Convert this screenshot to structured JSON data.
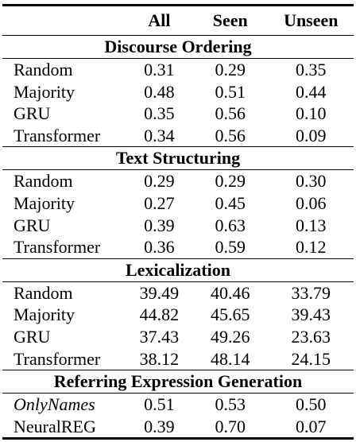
{
  "header": {
    "col_all": "All",
    "col_seen": "Seen",
    "col_unseen": "Unseen"
  },
  "sections": [
    {
      "title": "Discourse Ordering",
      "rows": [
        {
          "name": "Random",
          "all": "0.31",
          "seen": "0.29",
          "unseen": "0.35"
        },
        {
          "name": "Majority",
          "all": "0.48",
          "seen": "0.51",
          "unseen": "0.44"
        },
        {
          "name": "GRU",
          "all": "0.35",
          "seen": "0.56",
          "unseen": "0.10"
        },
        {
          "name": "Transformer",
          "all": "0.34",
          "seen": "0.56",
          "unseen": "0.09"
        }
      ]
    },
    {
      "title": "Text Structuring",
      "rows": [
        {
          "name": "Random",
          "all": "0.29",
          "seen": "0.29",
          "unseen": "0.30"
        },
        {
          "name": "Majority",
          "all": "0.27",
          "seen": "0.45",
          "unseen": "0.06"
        },
        {
          "name": "GRU",
          "all": "0.39",
          "seen": "0.63",
          "unseen": "0.13"
        },
        {
          "name": "Transformer",
          "all": "0.36",
          "seen": "0.59",
          "unseen": "0.12"
        }
      ]
    },
    {
      "title": "Lexicalization",
      "rows": [
        {
          "name": "Random",
          "all": "39.49",
          "seen": "40.46",
          "unseen": "33.79"
        },
        {
          "name": "Majority",
          "all": "44.82",
          "seen": "45.65",
          "unseen": "39.43"
        },
        {
          "name": "GRU",
          "all": "37.43",
          "seen": "49.26",
          "unseen": "23.63"
        },
        {
          "name": "Transformer",
          "all": "38.12",
          "seen": "48.14",
          "unseen": "24.15"
        }
      ]
    },
    {
      "title": "Referring Expression Generation",
      "rows": [
        {
          "name": "OnlyNames",
          "all": "0.51",
          "seen": "0.53",
          "unseen": "0.50"
        },
        {
          "name": "NeuralREG",
          "all": "0.39",
          "seen": "0.70",
          "unseen": "0.07"
        }
      ]
    }
  ]
}
